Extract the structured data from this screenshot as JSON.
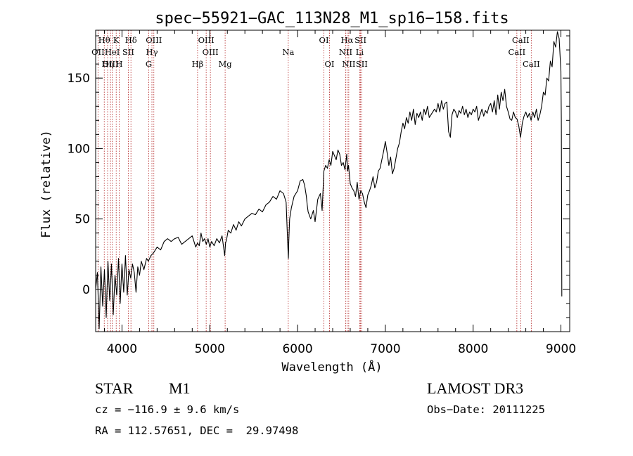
{
  "chart_data": {
    "type": "line",
    "title": "spec−55921−GAC_113N28_M1_sp16−158.fits",
    "xlabel": "Wavelength (Å)",
    "ylabel": "Flux (relative)",
    "xlim": [
      3700,
      9100
    ],
    "ylim": [
      -30,
      184
    ],
    "xticks": [
      4000,
      5000,
      6000,
      7000,
      8000,
      9000
    ],
    "yticks": [
      0,
      50,
      100,
      150
    ],
    "series": [
      {
        "name": "spectrum",
        "x": [
          3700,
          3720,
          3740,
          3760,
          3780,
          3800,
          3820,
          3840,
          3860,
          3880,
          3900,
          3920,
          3940,
          3960,
          3980,
          4000,
          4020,
          4040,
          4060,
          4080,
          4100,
          4120,
          4140,
          4160,
          4180,
          4200,
          4220,
          4250,
          4280,
          4300,
          4330,
          4360,
          4400,
          4440,
          4480,
          4520,
          4560,
          4600,
          4640,
          4680,
          4720,
          4760,
          4800,
          4840,
          4860,
          4880,
          4900,
          4920,
          4940,
          4960,
          4980,
          5000,
          5020,
          5050,
          5080,
          5110,
          5140,
          5170,
          5180,
          5190,
          5210,
          5240,
          5270,
          5300,
          5330,
          5360,
          5400,
          5440,
          5480,
          5520,
          5560,
          5600,
          5640,
          5680,
          5720,
          5760,
          5800,
          5840,
          5870,
          5880,
          5890,
          5895,
          5900,
          5910,
          5930,
          5960,
          6000,
          6030,
          6060,
          6080,
          6100,
          6110,
          6120,
          6150,
          6180,
          6200,
          6230,
          6260,
          6280,
          6300,
          6320,
          6340,
          6360,
          6380,
          6400,
          6420,
          6440,
          6460,
          6480,
          6500,
          6520,
          6540,
          6560,
          6570,
          6580,
          6600,
          6620,
          6640,
          6660,
          6680,
          6700,
          6720,
          6740,
          6760,
          6780,
          6800,
          6820,
          6840,
          6860,
          6880,
          6900,
          6920,
          6940,
          6960,
          6980,
          7000,
          7020,
          7040,
          7060,
          7080,
          7100,
          7120,
          7140,
          7160,
          7180,
          7200,
          7220,
          7240,
          7260,
          7280,
          7300,
          7320,
          7340,
          7360,
          7380,
          7400,
          7420,
          7440,
          7460,
          7480,
          7500,
          7520,
          7540,
          7560,
          7580,
          7600,
          7620,
          7640,
          7660,
          7680,
          7700,
          7720,
          7740,
          7760,
          7780,
          7800,
          7820,
          7840,
          7860,
          7880,
          7900,
          7920,
          7940,
          7960,
          7980,
          8000,
          8020,
          8040,
          8060,
          8080,
          8100,
          8120,
          8140,
          8160,
          8180,
          8200,
          8220,
          8240,
          8260,
          8280,
          8300,
          8320,
          8340,
          8360,
          8380,
          8400,
          8420,
          8440,
          8460,
          8480,
          8500,
          8520,
          8540,
          8560,
          8580,
          8600,
          8620,
          8640,
          8660,
          8680,
          8700,
          8720,
          8740,
          8760,
          8780,
          8800,
          8820,
          8840,
          8860,
          8880,
          8900,
          8920,
          8940,
          8960,
          8980,
          9000,
          9005,
          9010
        ],
        "values": [
          0,
          12,
          -28,
          16,
          -12,
          14,
          -20,
          20,
          -8,
          18,
          -18,
          10,
          -4,
          22,
          -10,
          18,
          -2,
          24,
          -4,
          14,
          8,
          18,
          12,
          -2,
          16,
          10,
          20,
          14,
          22,
          20,
          24,
          26,
          30,
          28,
          34,
          36,
          34,
          36,
          37,
          32,
          34,
          36,
          38,
          30,
          33,
          31,
          40,
          34,
          36,
          32,
          36,
          30,
          34,
          31,
          36,
          33,
          38,
          24,
          33,
          35,
          42,
          40,
          46,
          42,
          48,
          45,
          50,
          52,
          54,
          53,
          57,
          55,
          60,
          62,
          66,
          64,
          70,
          68,
          62,
          45,
          30,
          22,
          34,
          50,
          58,
          66,
          70,
          77,
          78,
          74,
          66,
          60,
          55,
          50,
          56,
          48,
          64,
          68,
          56,
          84,
          88,
          86,
          92,
          88,
          98,
          95,
          92,
          99,
          96,
          88,
          90,
          85,
          96,
          84,
          88,
          75,
          72,
          70,
          66,
          76,
          64,
          70,
          68,
          62,
          58,
          67,
          70,
          74,
          80,
          72,
          76,
          84,
          86,
          92,
          98,
          105,
          97,
          88,
          94,
          82,
          86,
          93,
          100,
          104,
          112,
          118,
          114,
          122,
          118,
          126,
          120,
          128,
          117,
          125,
          122,
          126,
          120,
          128,
          124,
          130,
          122,
          124,
          126,
          128,
          126,
          132,
          126,
          134,
          128,
          132,
          133,
          112,
          108,
          124,
          128,
          126,
          122,
          127,
          125,
          130,
          124,
          128,
          122,
          126,
          124,
          128,
          126,
          130,
          120,
          124,
          128,
          123,
          127,
          125,
          130,
          132,
          126,
          134,
          124,
          138,
          128,
          140,
          134,
          142,
          130,
          126,
          121,
          120,
          126,
          122,
          121,
          116,
          108,
          118,
          123,
          126,
          122,
          125,
          120,
          126,
          122,
          128,
          120,
          124,
          130,
          140,
          138,
          150,
          148,
          162,
          158,
          176,
          172,
          183,
          178,
          155,
          120,
          -5
        ]
      }
    ],
    "lines": [
      {
        "name": "Hθ",
        "x": 3798,
        "row": 0
      },
      {
        "name": "OII",
        "x": 3727,
        "row": 1
      },
      {
        "name": "OIII",
        "x": 3869,
        "row": 2
      },
      {
        "name": "Hη",
        "x": 3836,
        "row": 2
      },
      {
        "name": "K",
        "x": 3934,
        "row": 0
      },
      {
        "name": "HeI",
        "x": 3889,
        "row": 1
      },
      {
        "name": "H",
        "x": 3969,
        "row": 2
      },
      {
        "name": "SII",
        "x": 4072,
        "row": 1
      },
      {
        "name": "Hδ",
        "x": 4102,
        "row": 0
      },
      {
        "name": "OIII",
        "x": 4363,
        "row": 0
      },
      {
        "name": "Hγ",
        "x": 4341,
        "row": 1
      },
      {
        "name": "G",
        "x": 4305,
        "row": 2
      },
      {
        "name": "Hβ",
        "x": 4861,
        "row": 2
      },
      {
        "name": "OIII",
        "x": 4959,
        "row": 0
      },
      {
        "name": "OIII",
        "x": 5007,
        "row": 1
      },
      {
        "name": "Mg",
        "x": 5175,
        "row": 2
      },
      {
        "name": "Na",
        "x": 5894,
        "row": 1
      },
      {
        "name": "OI",
        "x": 6300,
        "row": 0
      },
      {
        "name": "OI",
        "x": 6364,
        "row": 2
      },
      {
        "name": "Hα",
        "x": 6563,
        "row": 0
      },
      {
        "name": "NII",
        "x": 6548,
        "row": 1
      },
      {
        "name": "NII",
        "x": 6583,
        "row": 2
      },
      {
        "name": "SII",
        "x": 6717,
        "row": 0
      },
      {
        "name": "Li",
        "x": 6708,
        "row": 1
      },
      {
        "name": "SII",
        "x": 6731,
        "row": 2
      },
      {
        "name": "CaII",
        "x": 8542,
        "row": 0
      },
      {
        "name": "CaII",
        "x": 8498,
        "row": 1
      },
      {
        "name": "CaII",
        "x": 8662,
        "row": 2
      }
    ]
  },
  "info": {
    "class": "STAR",
    "subclass": "M1",
    "survey": "LAMOST DR3",
    "cz": "cz = −116.9 ± 9.6 km/s",
    "obs_date": "Obs−Date: 20111225",
    "radec": "RA = 112.57651, DEC =  29.97498"
  },
  "colors": {
    "line_marker": "#b22222",
    "spectrum": "#000000"
  }
}
